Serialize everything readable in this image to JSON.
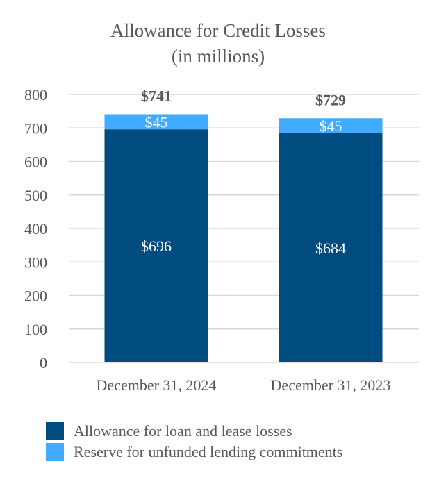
{
  "chart_data": {
    "type": "bar",
    "stacked": true,
    "title": "Allowance for Credit Losses",
    "subtitle": "(in millions)",
    "categories": [
      "December 31, 2024",
      "December 31, 2023"
    ],
    "series": [
      {
        "name": "Allowance for loan and lease losses",
        "values": [
          696,
          684
        ],
        "labels": [
          "$696",
          "$684"
        ],
        "color": "#004B7F"
      },
      {
        "name": "Reserve for unfunded lending commitments",
        "values": [
          45,
          45
        ],
        "labels": [
          "$45",
          "$45"
        ],
        "color": "#40ABFF"
      }
    ],
    "totals": [
      "$741",
      "$729"
    ],
    "ylim": [
      0,
      800
    ],
    "yticks": [
      "0",
      "100",
      "200",
      "300",
      "400",
      "500",
      "600",
      "700",
      "800"
    ],
    "grid": true,
    "legend": "bottom-left"
  }
}
